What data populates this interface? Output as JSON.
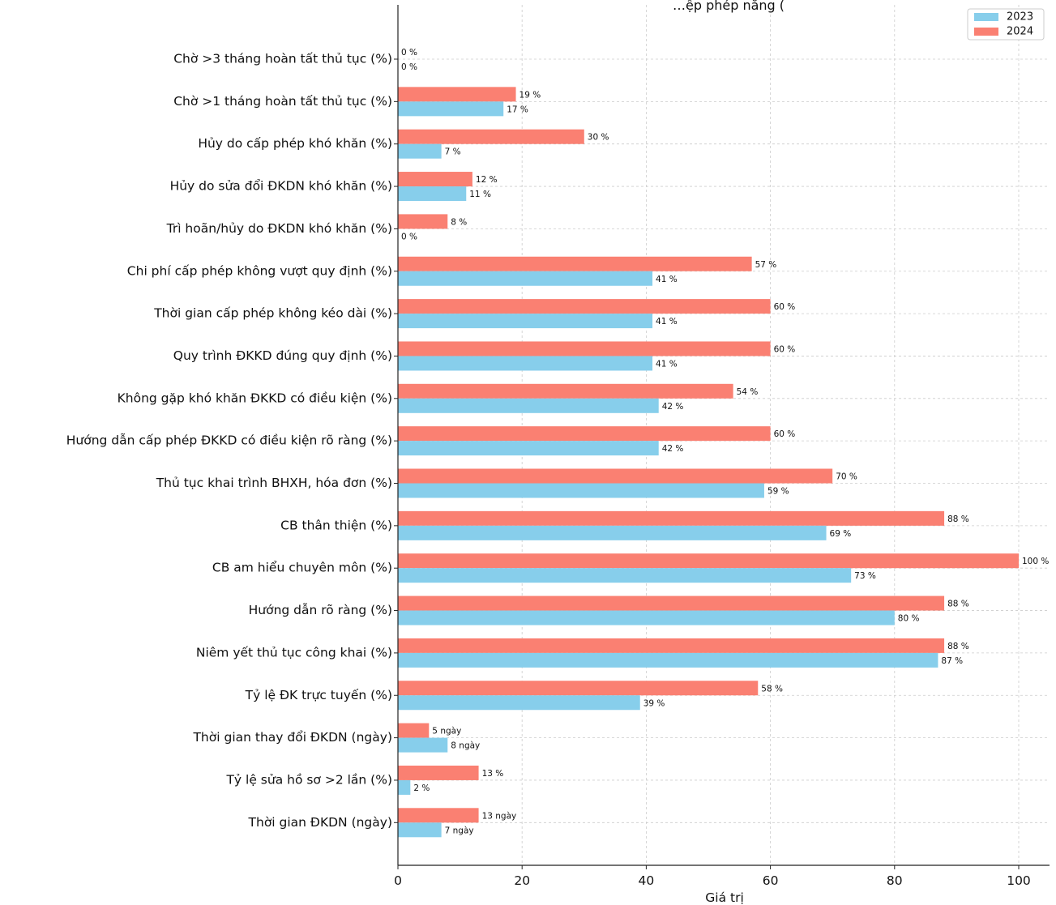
{
  "chart_data": {
    "type": "bar",
    "orientation": "horizontal",
    "title_partial": "…ệp phép năng (",
    "xlabel": "Giá trị",
    "ylabel": "",
    "xlim": [
      0,
      105
    ],
    "xticks": [
      0,
      20,
      40,
      60,
      80,
      100
    ],
    "grid": true,
    "legend_position": "top-right",
    "categories": [
      "Chờ >3 tháng hoàn tất thủ tục (%)",
      "Chờ >1 tháng hoàn tất thủ tục (%)",
      "Hủy do cấp phép khó khăn (%)",
      "Hủy do sửa đổi ĐKDN khó khăn (%)",
      "Trì hoãn/hủy do ĐKDN khó khăn (%)",
      "Chi phí cấp phép không vượt quy định (%)",
      "Thời gian cấp phép không kéo dài (%)",
      "Quy trình ĐKKD đúng quy định (%)",
      "Không gặp khó khăn ĐKKD có điều kiện (%)",
      "Hướng dẫn cấp phép ĐKKD có điều kiện rõ ràng (%)",
      "Thủ tục khai trình BHXH, hóa đơn (%)",
      "CB thân thiện (%)",
      "CB am hiểu chuyên môn (%)",
      "Hướng dẫn rõ ràng (%)",
      "Niêm yết thủ tục công khai (%)",
      "Tỷ lệ ĐK trực tuyến (%)",
      "Thời gian thay đổi ĐKDN (ngày)",
      "Tỷ lệ sửa hồ sơ >2 lần (%)",
      "Thời gian ĐKDN (ngày)"
    ],
    "units": [
      "%",
      "%",
      "%",
      "%",
      "%",
      "%",
      "%",
      "%",
      "%",
      "%",
      "%",
      "%",
      "%",
      "%",
      "%",
      "%",
      "ngày",
      "%",
      "ngày"
    ],
    "series": [
      {
        "name": "2023",
        "color": "#87ceeb",
        "values": [
          0,
          17,
          7,
          11,
          0,
          41,
          41,
          41,
          42,
          42,
          59,
          69,
          73,
          80,
          87,
          39,
          8,
          2,
          7
        ]
      },
      {
        "name": "2024",
        "color": "#fa8072",
        "values": [
          0,
          19,
          30,
          12,
          8,
          57,
          60,
          60,
          54,
          60,
          70,
          88,
          100,
          88,
          88,
          58,
          5,
          13,
          13
        ]
      }
    ]
  }
}
